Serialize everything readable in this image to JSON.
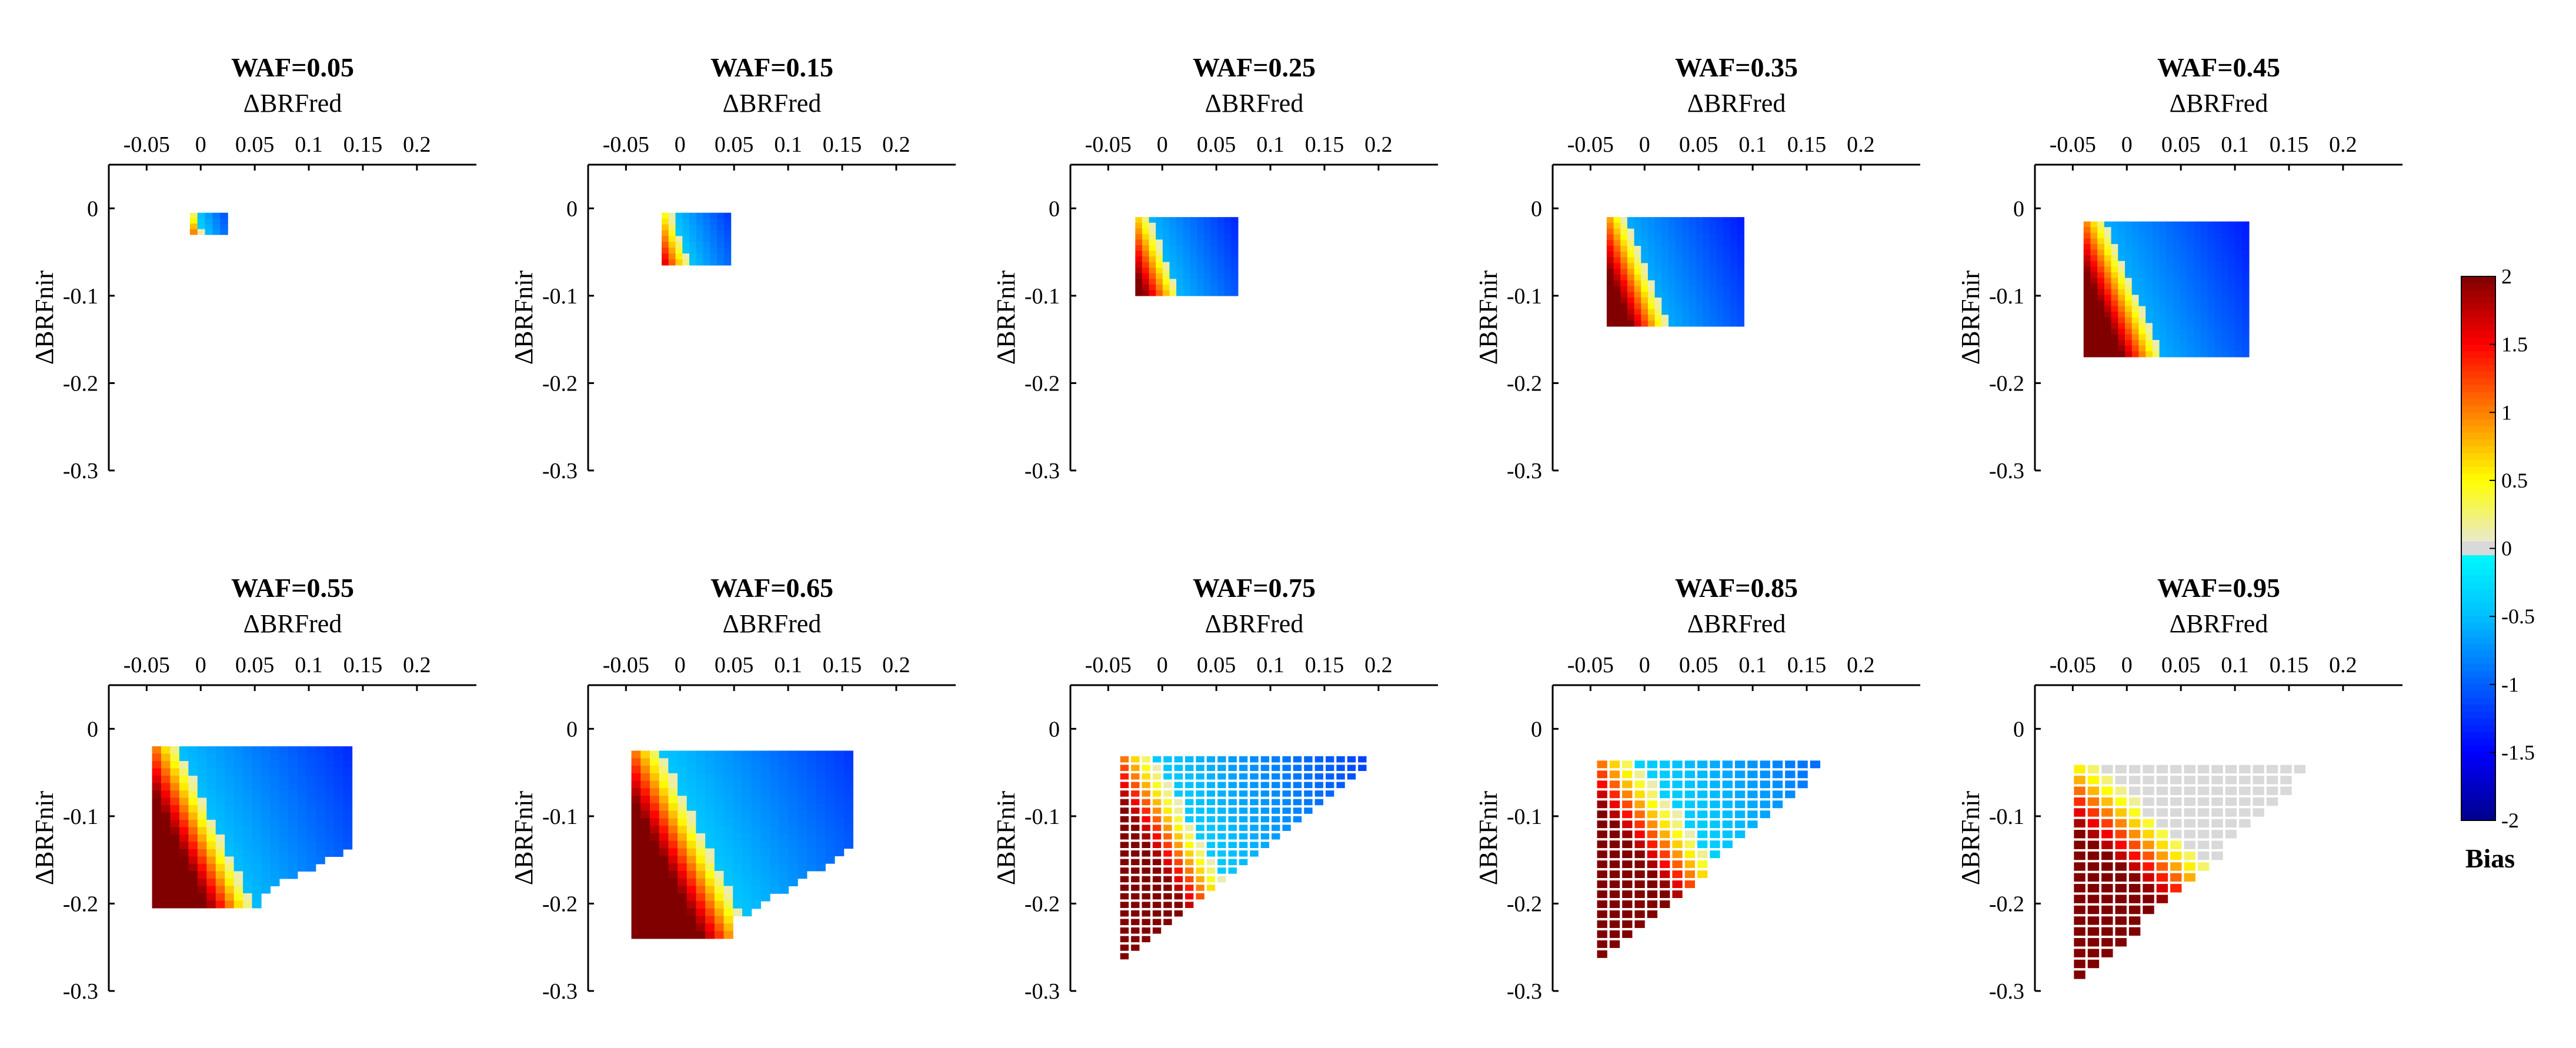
{
  "chart_data": {
    "type": "heatmap",
    "description_units": "cell value = Bias",
    "x_axis": {
      "label": "ΔBRFred",
      "ticks": [
        -0.05,
        0,
        0.05,
        0.1,
        0.15,
        0.2
      ],
      "tick_labels": [
        "-0.05",
        "0",
        "0.05",
        "0.1",
        "0.15",
        "0.2"
      ],
      "xlim": [
        -0.085,
        0.255
      ]
    },
    "y_axis": {
      "label": "ΔBRFnir",
      "ticks": [
        0,
        -0.1,
        -0.2,
        -0.3
      ],
      "tick_labels": [
        "0",
        "-0.1",
        "-0.2",
        "-0.3"
      ],
      "ylim": [
        -0.3,
        0.05
      ]
    },
    "colorbar": {
      "title": "Bias",
      "range": [
        -2,
        2
      ],
      "ticks": [
        2,
        1.5,
        1,
        0.5,
        0,
        -0.5,
        -1,
        -1.5,
        -2
      ],
      "tick_labels": [
        "2",
        "1.5",
        "1",
        "0.5",
        "0",
        "-0.5",
        "-1",
        "-1.5",
        "-2"
      ],
      "positive_stops": [
        "#e6e6e6",
        "#ffff00",
        "#ff8000",
        "#ff0000",
        "#800000"
      ],
      "negative_stops": [
        "#00ffff",
        "#00bfff",
        "#0060ff",
        "#0000ff",
        "#00008b"
      ],
      "zero_color": "#d9d9d9"
    },
    "panels": [
      {
        "title": "WAF=0.05",
        "cell": 0.0065,
        "x_range": [
          -0.01,
          0.025
        ],
        "y_range": [
          -0.03,
          -0.005
        ],
        "mode": "dense",
        "boundary": [
          -0.005,
          0.2
        ],
        "pos_scale": 0.9,
        "neg_scale": 0.38
      },
      {
        "title": "WAF=0.15",
        "cell": 0.0065,
        "x_range": [
          -0.017,
          0.047
        ],
        "y_range": [
          -0.065,
          -0.005
        ],
        "mode": "dense",
        "boundary": [
          -0.01,
          0.28
        ],
        "pos_scale": 0.9,
        "neg_scale": 0.45
      },
      {
        "title": "WAF=0.25",
        "cell": 0.0065,
        "x_range": [
          -0.025,
          0.07
        ],
        "y_range": [
          -0.1,
          -0.01
        ],
        "mode": "dense",
        "boundary": [
          -0.013,
          0.3
        ],
        "pos_scale": 1.2,
        "neg_scale": 0.55
      },
      {
        "title": "WAF=0.35",
        "cell": 0.0065,
        "x_range": [
          -0.035,
          0.092
        ],
        "y_range": [
          -0.135,
          -0.01
        ],
        "mode": "dense",
        "boundary": [
          -0.016,
          0.32
        ],
        "pos_scale": 1.5,
        "neg_scale": 0.6
      },
      {
        "title": "WAF=0.45",
        "cell": 0.0065,
        "x_range": [
          -0.04,
          0.113
        ],
        "y_range": [
          -0.17,
          -0.015
        ],
        "mode": "dense",
        "boundary": [
          -0.02,
          0.35
        ],
        "pos_scale": 1.7,
        "neg_scale": 0.6
      },
      {
        "title": "WAF=0.55",
        "cell": 0.0085,
        "x_range": [
          -0.045,
          0.14
        ],
        "y_range": [
          -0.205,
          -0.02
        ],
        "mode": "dense",
        "boundary": [
          -0.02,
          0.38
        ],
        "pos_scale": 1.8,
        "neg_scale": 0.5,
        "cut_x": 0.06,
        "cut_slope": 0.6
      },
      {
        "title": "WAF=0.65",
        "cell": 0.0085,
        "x_range": [
          -0.045,
          0.16
        ],
        "y_range": [
          -0.24,
          -0.025
        ],
        "mode": "dense",
        "boundary": [
          -0.02,
          0.42
        ],
        "pos_scale": 1.8,
        "neg_scale": 0.45,
        "cut_x": 0.05,
        "cut_slope": 0.75
      },
      {
        "title": "WAF=0.75",
        "cell": 0.01,
        "x_range": [
          -0.04,
          0.19
        ],
        "y_range": [
          -0.275,
          -0.03
        ],
        "mode": "triangle",
        "boundary": [
          -0.02,
          0.5
        ],
        "pos_scale": 1.8,
        "neg_scale": 0.4,
        "tri_a": -0.07,
        "tri_b": 1.0
      },
      {
        "title": "WAF=0.85",
        "cell": 0.0115,
        "x_range": [
          -0.045,
          0.21
        ],
        "y_range": [
          -0.275,
          -0.035
        ],
        "mode": "triangle",
        "boundary": [
          -0.01,
          0.6
        ],
        "pos_scale": 1.6,
        "neg_scale": 0.35,
        "tri_a": -0.07,
        "tri_b": 1.1
      },
      {
        "title": "WAF=0.95",
        "cell": 0.0125,
        "x_range": [
          -0.05,
          0.23
        ],
        "y_range": [
          -0.3,
          -0.04
        ],
        "mode": "gray",
        "boundary": [
          -0.06,
          0.85
        ],
        "pos_scale": 1.3,
        "neg_scale": 0.0,
        "tri_a": -0.07,
        "tri_b": 1.15
      }
    ]
  }
}
